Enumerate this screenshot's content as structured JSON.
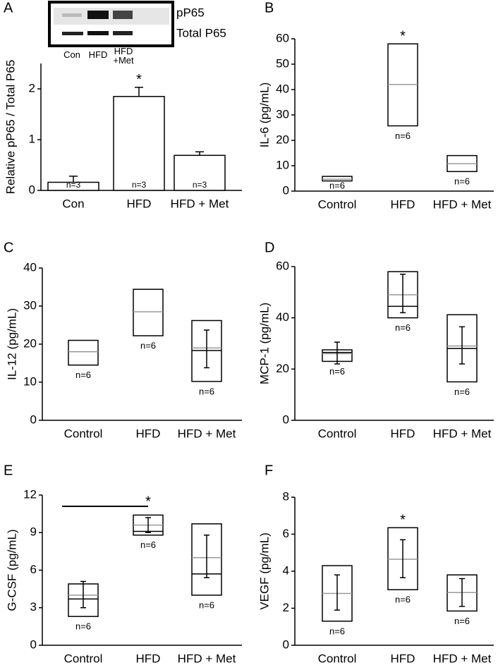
{
  "chart_data": [
    {
      "type": "bar",
      "panel_label": "A",
      "y_label": "Relative pP65 / Total P65",
      "categories": [
        "Con",
        "HFD",
        "HFD + Met"
      ],
      "values": [
        0.16,
        1.85,
        0.69
      ],
      "errors": [
        0.12,
        0.18,
        0.07
      ],
      "n_labels": [
        "n=3",
        "n=3",
        "n=3"
      ],
      "stars": [
        null,
        "*",
        null
      ],
      "color": "#ffffff",
      "ylim": [
        0,
        2.5
      ],
      "yticks": [
        0,
        1,
        2
      ],
      "inset": {
        "row_labels": [
          "pP65",
          "Total P65"
        ],
        "lane_labels": [
          "Con",
          "HFD",
          "HFD +Met"
        ]
      }
    },
    {
      "type": "box",
      "panel_label": "B",
      "y_label": "IL-6 (pg/mL)",
      "categories": [
        "Control",
        "HFD",
        "HFD + Met"
      ],
      "low": [
        4,
        25.7,
        7.7
      ],
      "high": [
        5.8,
        58,
        14
      ],
      "median": [
        4.7,
        42,
        10.8
      ],
      "n_labels": [
        "n=6",
        "n=6",
        "n=6"
      ],
      "stars": [
        null,
        "*",
        null
      ],
      "color": "#999999",
      "ylim": [
        0,
        60
      ],
      "yticks": [
        0,
        10,
        20,
        30,
        40,
        50,
        60
      ]
    },
    {
      "type": "box",
      "panel_label": "C",
      "y_label": "IL-12 (pg/mL)",
      "categories": [
        "Control",
        "HFD",
        "HFD + Met"
      ],
      "low": [
        14.5,
        22.2,
        10.2
      ],
      "high": [
        21,
        34.4,
        26.2
      ],
      "median": [
        18,
        28.5,
        19
      ],
      "mean": [
        null,
        null,
        18.3
      ],
      "whisker_low": [
        null,
        null,
        13.8
      ],
      "whisker_high": [
        null,
        null,
        23.7
      ],
      "n_labels": [
        "n=6",
        "n=6",
        "n=6"
      ],
      "color": "#999999",
      "ylim": [
        0,
        40
      ],
      "yticks": [
        0,
        10,
        20,
        30,
        40
      ]
    },
    {
      "type": "box",
      "panel_label": "D",
      "y_label": "MCP-1 (pg/mL)",
      "categories": [
        "Control",
        "HFD",
        "HFD + Met"
      ],
      "low": [
        23,
        40,
        15
      ],
      "high": [
        27.5,
        58,
        41.2
      ],
      "median": [
        26,
        49,
        29
      ],
      "mean": [
        26.5,
        44.5,
        28
      ],
      "whisker_low": [
        22,
        42,
        22
      ],
      "whisker_high": [
        30.5,
        57,
        36.5
      ],
      "n_labels": [
        "n=6",
        "n=6",
        "n=6"
      ],
      "color": "#999999",
      "ylim": [
        0,
        60
      ],
      "yticks": [
        0,
        20,
        40,
        60
      ]
    },
    {
      "type": "box",
      "panel_label": "E",
      "y_label": "G-CSF (pg/mL)",
      "categories": [
        "Control",
        "HFD",
        "HFD + Met"
      ],
      "low": [
        2.3,
        8.8,
        4
      ],
      "high": [
        4.9,
        10.4,
        9.7
      ],
      "median": [
        4,
        9.6,
        7
      ],
      "mean": [
        3.7,
        9.1,
        5.7
      ],
      "whisker_low": [
        3,
        9,
        5.4
      ],
      "whisker_high": [
        5.1,
        10.2,
        8.8
      ],
      "n_labels": [
        "n=6",
        "n=6",
        "n=6"
      ],
      "stars": [
        null,
        "*",
        null
      ],
      "significance_line": 11.1,
      "color": "#999999",
      "ylim": [
        0,
        12
      ],
      "yticks": [
        0,
        3,
        6,
        9,
        12
      ]
    },
    {
      "type": "box",
      "panel_label": "F",
      "y_label": "VEGF (pg/mL)",
      "categories": [
        "Control",
        "HFD",
        "HFD + Met"
      ],
      "low": [
        1.3,
        3,
        1.85
      ],
      "high": [
        4.3,
        6.35,
        3.8
      ],
      "median": [
        2.8,
        4.65,
        2.85
      ],
      "whisker_low": [
        1.9,
        3.65,
        2.1
      ],
      "whisker_high": [
        3.8,
        5.7,
        3.6
      ],
      "n_labels": [
        "n=6",
        "n=6",
        "n=6"
      ],
      "stars": [
        null,
        "*",
        null
      ],
      "color": "#999999",
      "ylim": [
        0,
        8
      ],
      "yticks": [
        0,
        2,
        4,
        6,
        8
      ]
    }
  ]
}
